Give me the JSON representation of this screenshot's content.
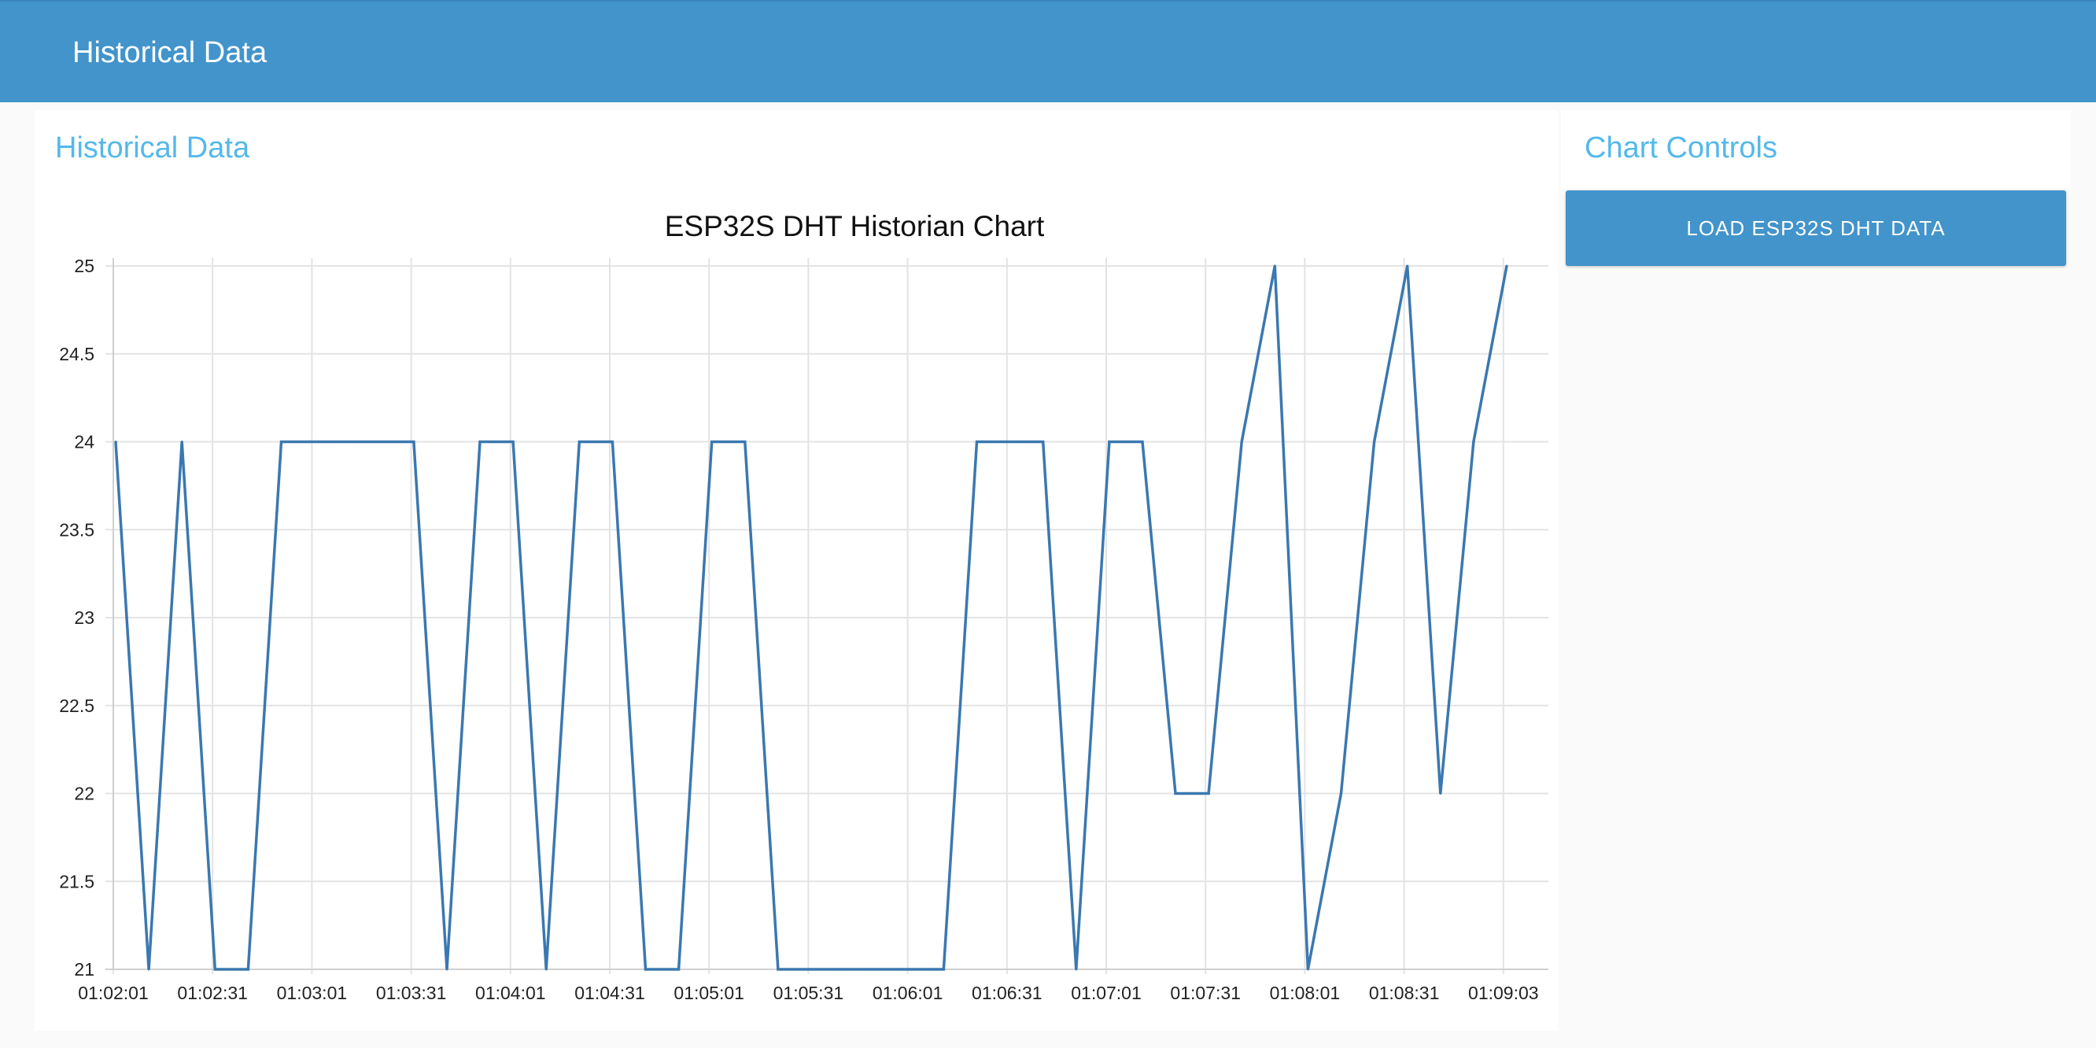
{
  "header": {
    "title": "Historical Data"
  },
  "main": {
    "title": "Historical Data"
  },
  "controls": {
    "title": "Chart Controls",
    "load_button_label": "LOAD ESP32S DHT DATA"
  },
  "colors": {
    "header_bg": "#4294cb",
    "accent_text": "#54b8ec",
    "series_line": "#3a78b0",
    "grid": "#e3e3e3"
  },
  "chart_data": {
    "type": "line",
    "title": "ESP32S DHT Historian Chart",
    "xlabel": "",
    "ylabel": "",
    "ylim": [
      21,
      25
    ],
    "yticks": [
      "21",
      "21.5",
      "22",
      "22.5",
      "23",
      "23.5",
      "24",
      "24.5",
      "25"
    ],
    "xticks": [
      "01:02:01",
      "01:02:31",
      "01:03:01",
      "01:03:31",
      "01:04:01",
      "01:04:31",
      "01:05:01",
      "01:05:31",
      "01:06:01",
      "01:06:31",
      "01:07:01",
      "01:07:31",
      "01:08:01",
      "01:08:31",
      "01:09:03"
    ],
    "grid": true,
    "series": [
      {
        "values": [
          24,
          21,
          24,
          21,
          21,
          24,
          24,
          24,
          24,
          24,
          21,
          24,
          24,
          21,
          24,
          24,
          21,
          21,
          24,
          24,
          21,
          21,
          21,
          21,
          21,
          21,
          24,
          24,
          24,
          21,
          24,
          24,
          22,
          22,
          24,
          25,
          21,
          22,
          24,
          25,
          22,
          24,
          25
        ]
      }
    ]
  }
}
